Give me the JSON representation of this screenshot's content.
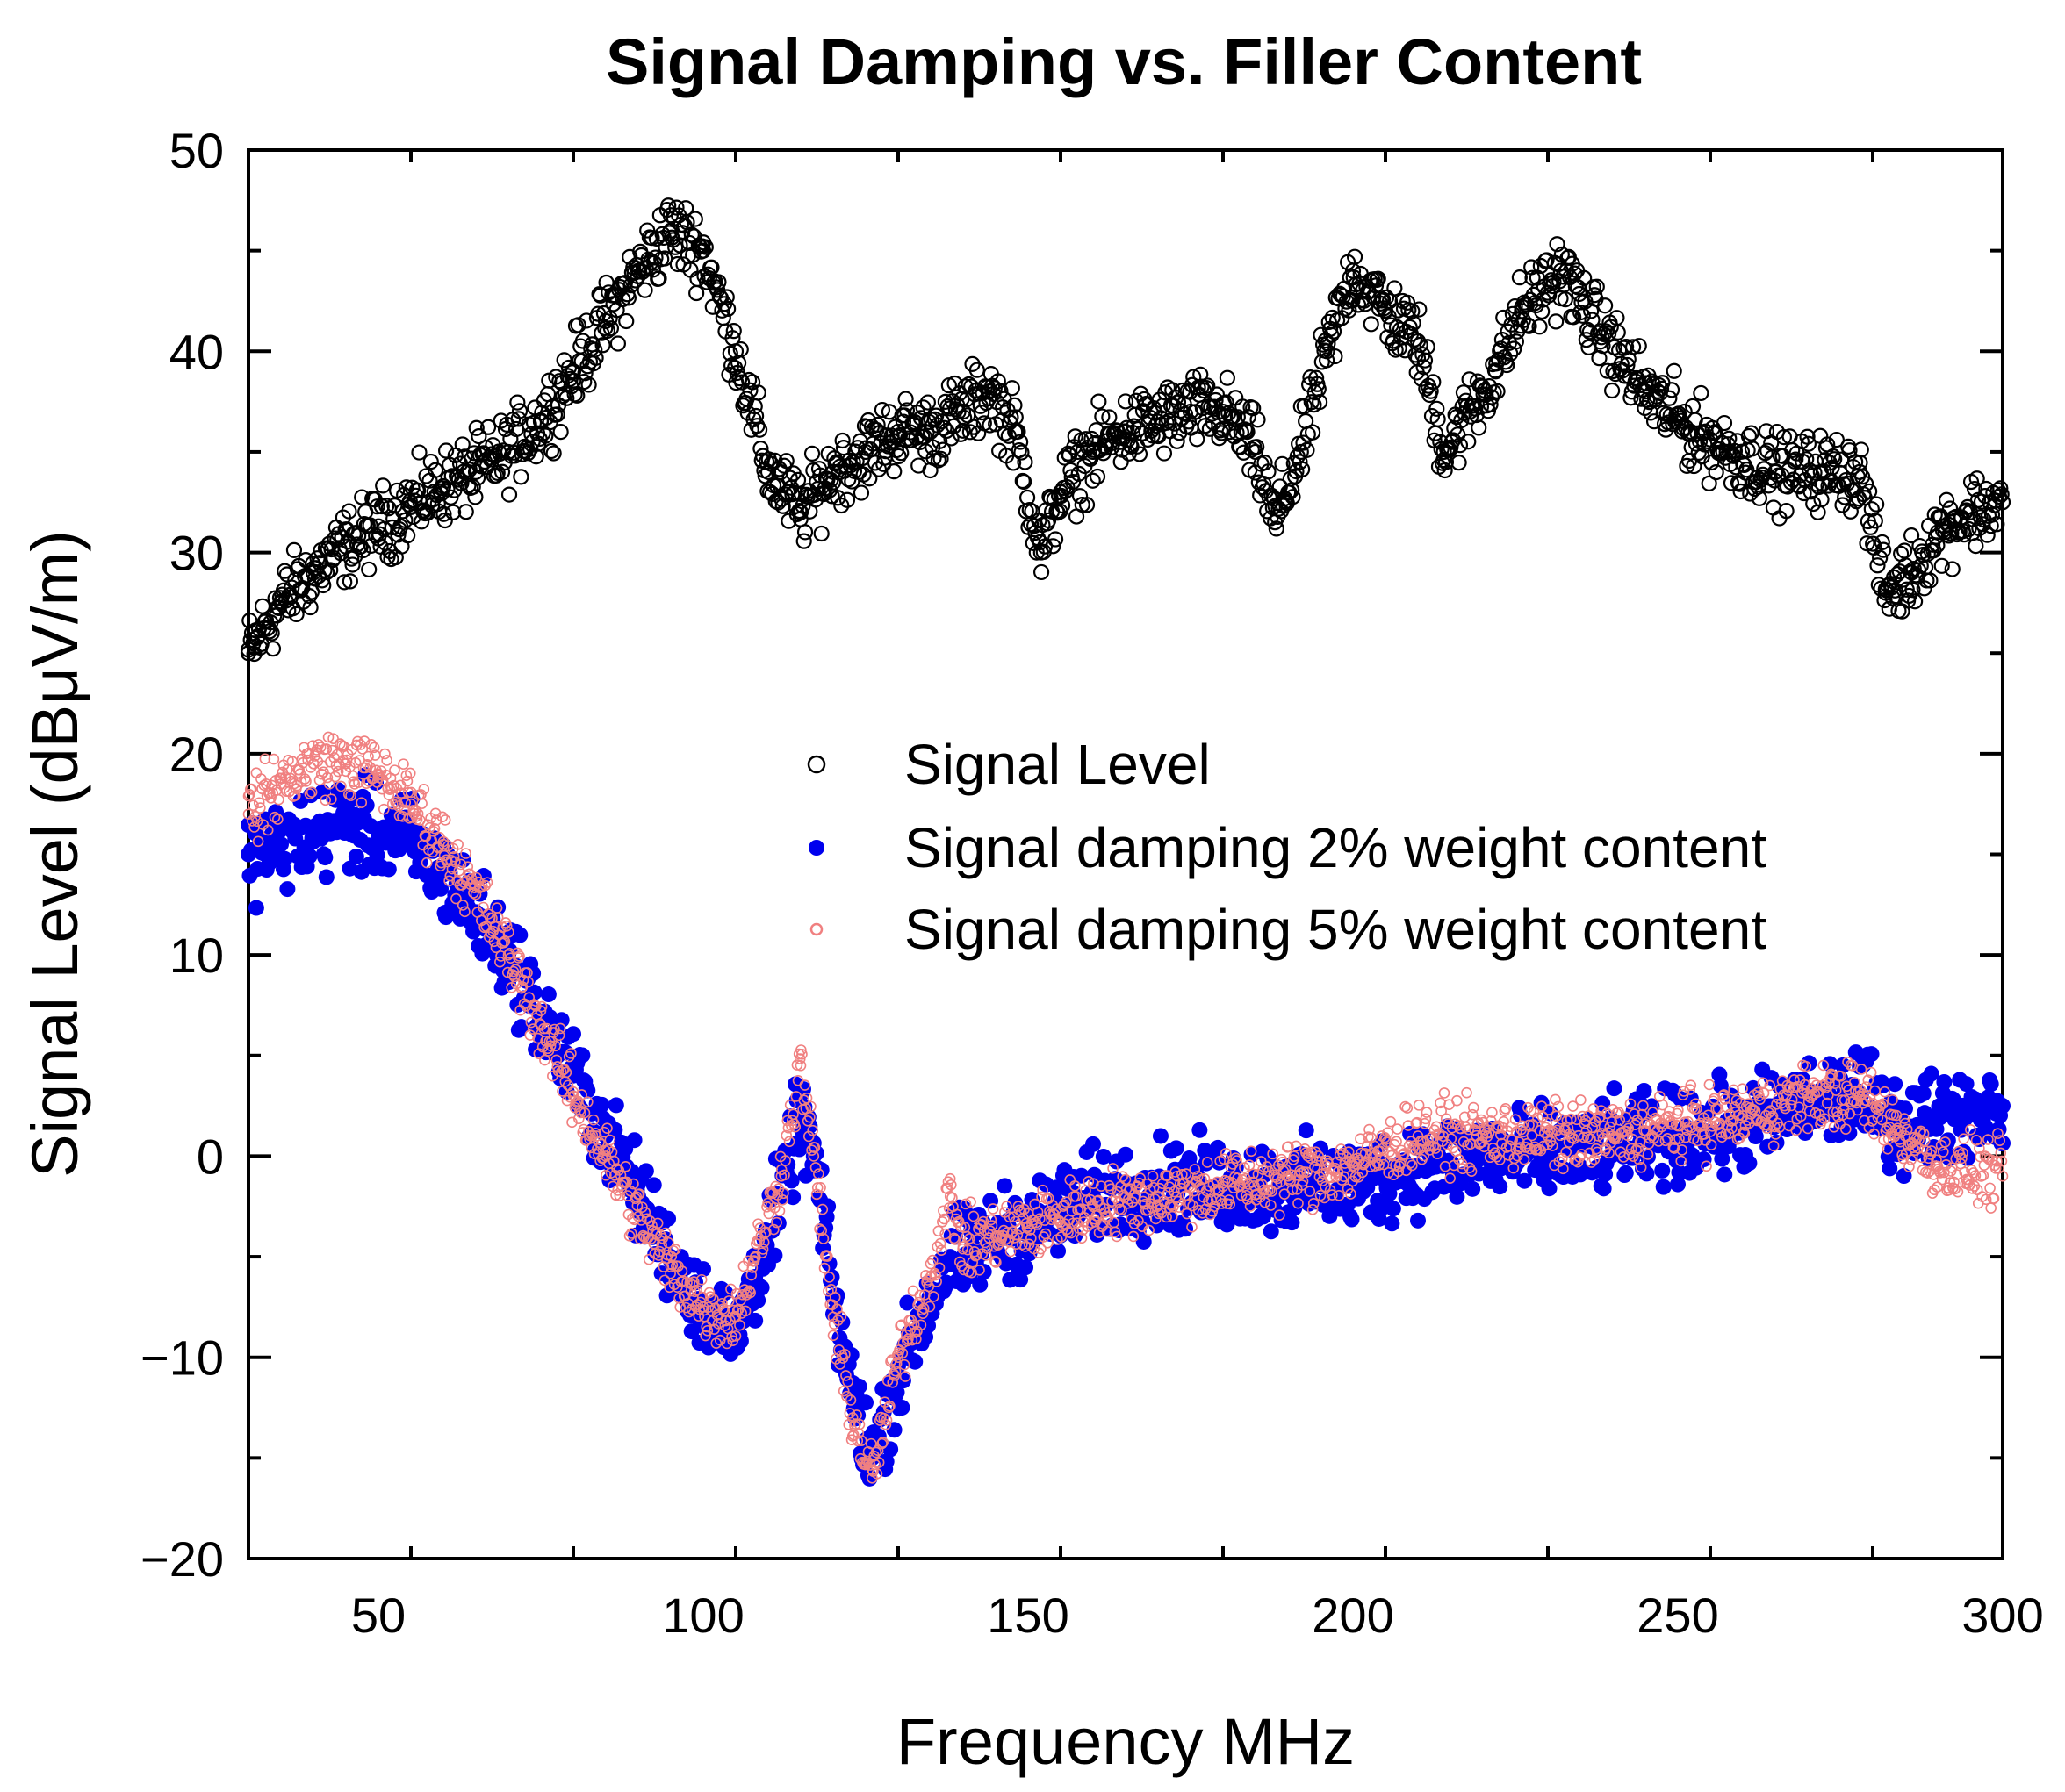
{
  "chart_data": {
    "type": "scatter",
    "title": "Signal Damping vs. Filler Content",
    "xlabel": "Frequency MHz",
    "ylabel": "Signal Level (dBμV/m)",
    "xlim": [
      30,
      300
    ],
    "ylim": [
      -20,
      50
    ],
    "xticks": [
      50,
      100,
      150,
      200,
      250,
      300
    ],
    "yticks": [
      -20,
      -10,
      0,
      10,
      20,
      30,
      40,
      50
    ],
    "xtick_labels": [
      "50",
      "100",
      "150",
      "200",
      "250",
      "300"
    ],
    "ytick_labels": [
      "−20",
      "−10",
      "0",
      "10",
      "20",
      "30",
      "40",
      "50"
    ],
    "legend_position": "center-right",
    "grid": false,
    "series": [
      {
        "name": "Signal Level",
        "marker": "open-circle",
        "color": "#000000",
        "x": [
          30,
          35,
          40,
          45,
          50,
          55,
          60,
          65,
          70,
          75,
          80,
          85,
          90,
          95,
          100,
          105,
          110,
          115,
          120,
          125,
          130,
          135,
          140,
          144,
          148,
          152,
          155,
          160,
          165,
          170,
          175,
          180,
          185,
          188,
          192,
          196,
          200,
          205,
          210,
          214,
          218,
          222,
          226,
          232,
          238,
          245,
          252,
          258,
          265,
          272,
          278,
          282,
          286,
          290,
          295,
          300
        ],
        "y": [
          25,
          27.5,
          29,
          30.3,
          31.3,
          32.3,
          33.3,
          34,
          35,
          36.5,
          39,
          41.5,
          44,
          46,
          45,
          40,
          34,
          32,
          34,
          35,
          36,
          36,
          37,
          38,
          36,
          30,
          33,
          35,
          36,
          36.5,
          37,
          37,
          35,
          31.5,
          35,
          40,
          44,
          42,
          40.5,
          35,
          37,
          39,
          42,
          44,
          41,
          38,
          36,
          35,
          34,
          34,
          34,
          28,
          29,
          31,
          32,
          32.5
        ]
      },
      {
        "name": "Signal damping 2% weight content",
        "marker": "filled-circle",
        "color": "#0000EE",
        "x": [
          30,
          35,
          40,
          45,
          50,
          55,
          60,
          65,
          70,
          75,
          80,
          85,
          90,
          95,
          100,
          105,
          108,
          112,
          115,
          117,
          120,
          123,
          126,
          130,
          135,
          138,
          140,
          145,
          150,
          160,
          170,
          180,
          190,
          200,
          210,
          220,
          230,
          240,
          250,
          260,
          270,
          278,
          285,
          290,
          300
        ],
        "y": [
          15,
          15.5,
          16,
          16.5,
          16,
          15.5,
          14,
          12,
          10,
          7,
          4,
          1,
          -2,
          -5,
          -7.5,
          -9,
          -6,
          -2,
          2,
          0,
          -7,
          -12,
          -15,
          -11,
          -7,
          -5,
          -5,
          -4,
          -3.5,
          -2,
          -1.5,
          -1.5,
          -1.5,
          -1.5,
          -0.5,
          0,
          0,
          0.5,
          1,
          1.5,
          2.5,
          3,
          1.5,
          2,
          2.5
        ]
      },
      {
        "name": "Signal damping 5% weight content",
        "marker": "open-circle-small",
        "color": "#F08080",
        "x": [
          30,
          35,
          40,
          45,
          50,
          55,
          60,
          65,
          70,
          75,
          80,
          85,
          90,
          95,
          100,
          105,
          108,
          112,
          115,
          117,
          120,
          123,
          126,
          130,
          135,
          138,
          140,
          145,
          150,
          160,
          170,
          180,
          190,
          200,
          210,
          220,
          230,
          240,
          250,
          260,
          270,
          278,
          285,
          290,
          300
        ],
        "y": [
          17,
          18.5,
          19.5,
          19.5,
          19,
          17.5,
          15.5,
          13,
          10,
          6.5,
          3,
          0,
          -3,
          -5.5,
          -7.5,
          -8,
          -5,
          -1,
          4.5,
          0,
          -8,
          -13,
          -16,
          -10,
          -6,
          -2,
          -4.5,
          -4,
          -3.5,
          -2.5,
          -2,
          -1.5,
          -1,
          -0.5,
          1,
          1,
          1,
          1,
          1.5,
          2,
          3,
          3,
          1,
          -0.5,
          -1
        ]
      }
    ]
  }
}
